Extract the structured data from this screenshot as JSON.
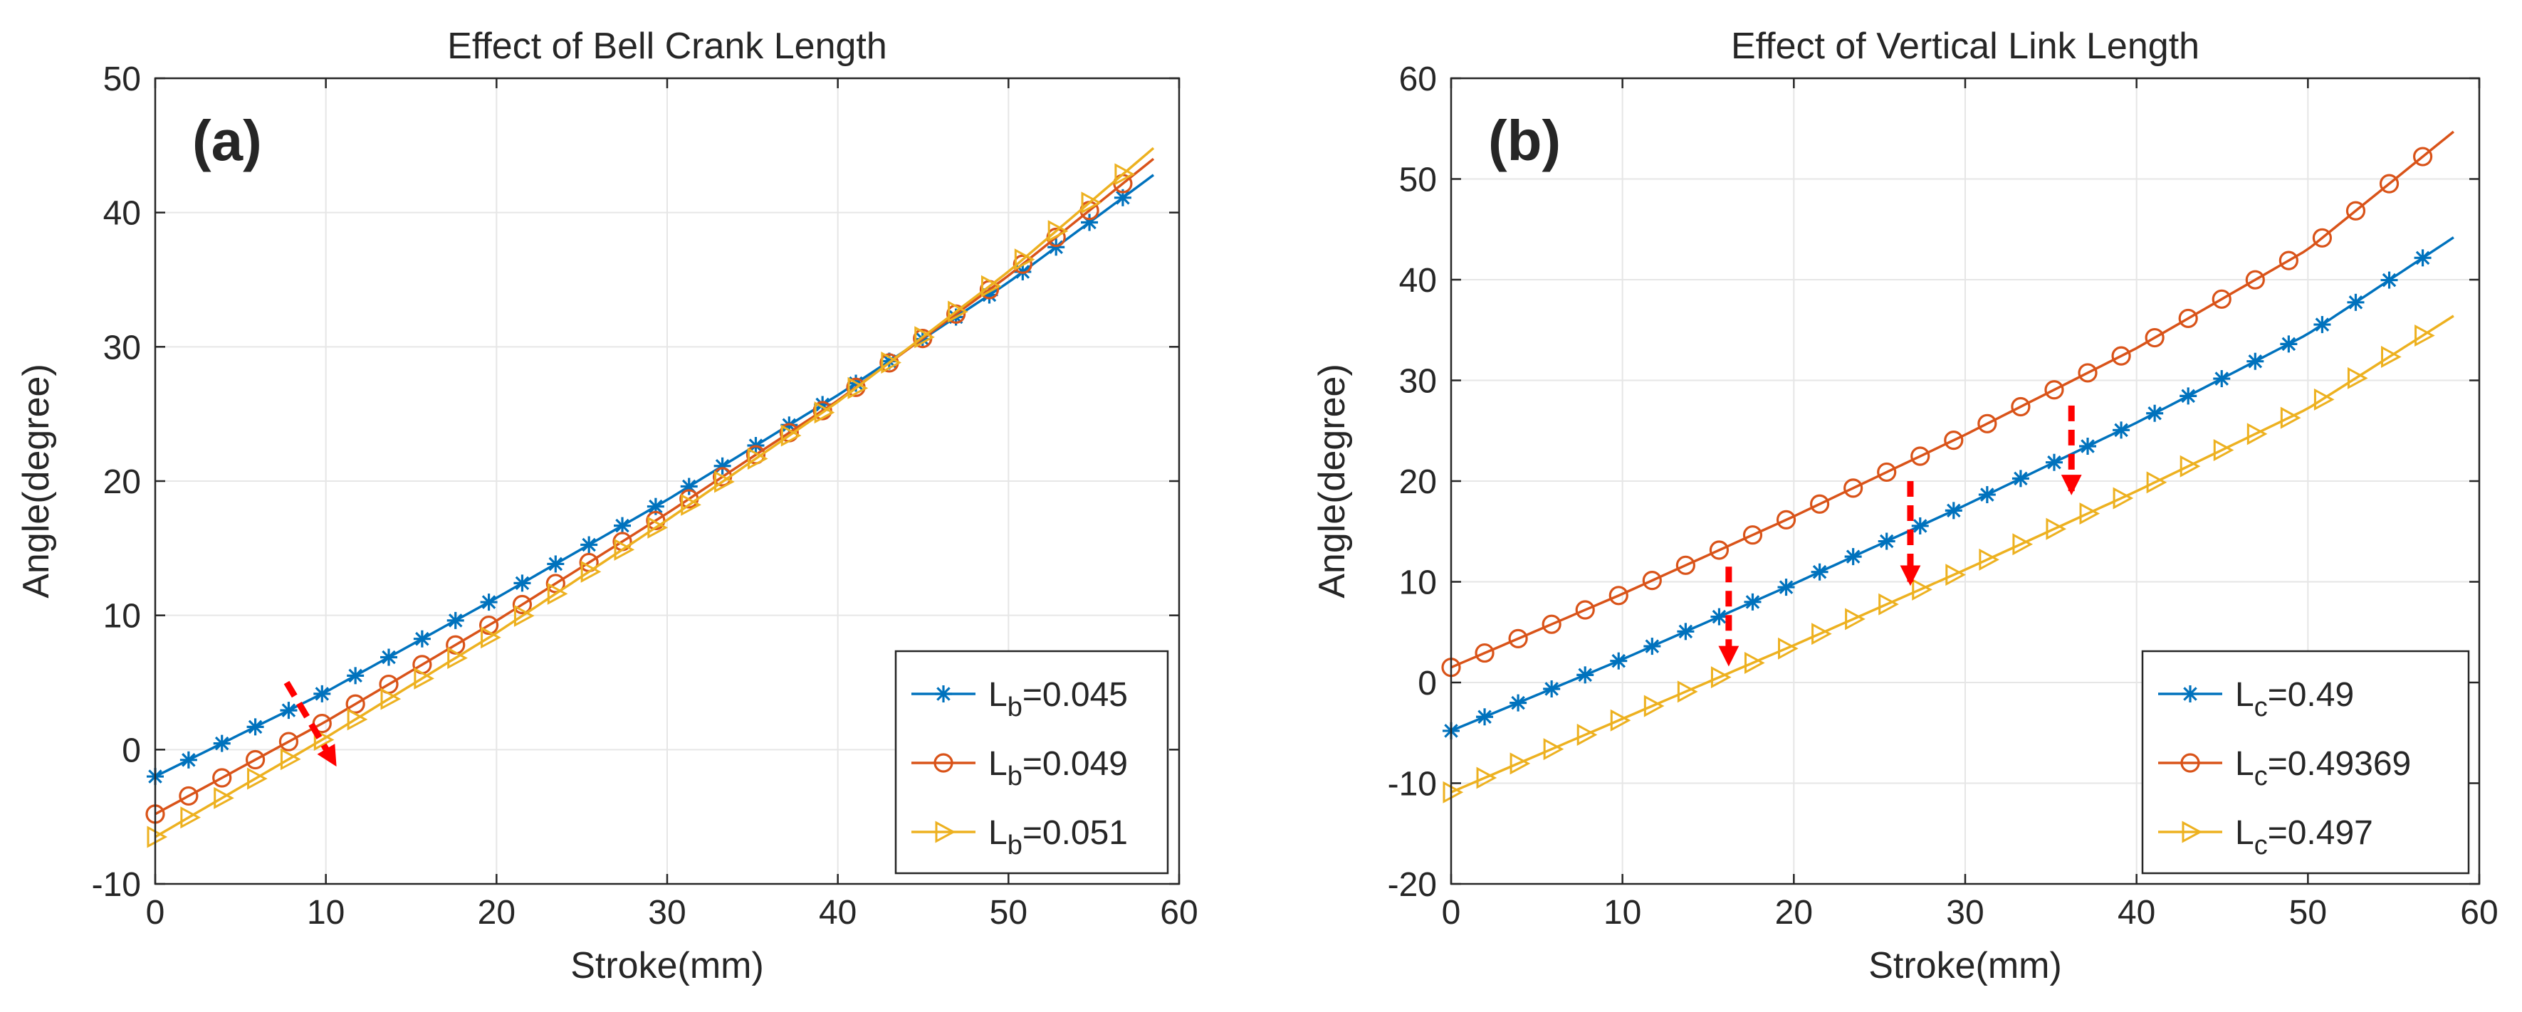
{
  "colors": {
    "series_1": "#0072BD",
    "series_2": "#D95319",
    "series_3": "#EDB120",
    "arrow": "#FF0000",
    "grid": "#E6E6E6",
    "axis": "#262626"
  },
  "chart_data": [
    {
      "type": "line",
      "panel_label": "(a)",
      "title": "Effect of Bell Crank Length",
      "xlabel": "Stroke(mm)",
      "ylabel": "Angle(degree)",
      "xlim": [
        0,
        60
      ],
      "ylim": [
        -10,
        50
      ],
      "xticks": [
        0,
        10,
        20,
        30,
        40,
        50,
        60
      ],
      "yticks": [
        -10,
        0,
        10,
        20,
        30,
        40,
        50
      ],
      "grid": true,
      "legend_position": "bottom-right",
      "x_range": [
        0,
        58.5
      ],
      "marker_x_range": [
        0,
        56.7
      ],
      "marker_count": 30,
      "series": [
        {
          "legend_main": "L",
          "legend_sub": "b",
          "legend_value": "=0.045",
          "marker": "asterisk",
          "color_key": "series_1",
          "x": [
            0,
            10,
            20,
            30,
            40,
            50,
            58.5
          ],
          "y": [
            -2,
            4.3,
            11.3,
            18.6,
            26.4,
            34.8,
            42.8
          ]
        },
        {
          "legend_main": "L",
          "legend_sub": "b",
          "legend_value": "=0.049",
          "marker": "circle",
          "color_key": "series_2",
          "x": [
            0,
            10,
            20,
            30,
            40,
            50,
            58.5
          ],
          "y": [
            -4.8,
            2.1,
            9.6,
            17.6,
            26,
            35.3,
            44
          ]
        },
        {
          "legend_main": "L",
          "legend_sub": "b",
          "legend_value": "=0.051",
          "marker": "triangle-right",
          "color_key": "series_3",
          "x": [
            0,
            10,
            20,
            30,
            40,
            50,
            58.5
          ],
          "y": [
            -6.5,
            0.9,
            8.7,
            17.1,
            25.9,
            35.6,
            44.8
          ]
        }
      ],
      "arrows": [
        {
          "from": [
            7.7,
            5
          ],
          "to": [
            10.5,
            -1
          ],
          "style": "dashed"
        }
      ]
    },
    {
      "type": "line",
      "panel_label": "(b)",
      "title": "Effect of Vertical Link Length",
      "xlabel": "Stroke(mm)",
      "ylabel": "Angle(degree)",
      "xlim": [
        0,
        60
      ],
      "ylim": [
        -20,
        60
      ],
      "xticks": [
        0,
        10,
        20,
        30,
        40,
        50,
        60
      ],
      "yticks": [
        -20,
        -10,
        0,
        10,
        20,
        30,
        40,
        50,
        60
      ],
      "grid": true,
      "legend_position": "bottom-right",
      "x_range": [
        0,
        58.5
      ],
      "marker_x_range": [
        0,
        56.7
      ],
      "marker_count": 30,
      "series": [
        {
          "legend_main": "L",
          "legend_sub": "c",
          "legend_value": "=0.49",
          "marker": "asterisk",
          "color_key": "series_1",
          "x": [
            0,
            10,
            20,
            30,
            40,
            50,
            58.5
          ],
          "y": [
            -4.8,
            2.3,
            9.8,
            17.6,
            25.8,
            34.6,
            44.2
          ]
        },
        {
          "legend_main": "L",
          "legend_sub": "c",
          "legend_value": "=0.49369",
          "marker": "circle",
          "color_key": "series_2",
          "x": [
            0,
            10,
            20,
            30,
            40,
            50,
            58.5
          ],
          "y": [
            1.5,
            8.8,
            16.5,
            24.6,
            33.2,
            43,
            54.7
          ]
        },
        {
          "legend_main": "L",
          "legend_sub": "c",
          "legend_value": "=0.497",
          "marker": "triangle-right",
          "color_key": "series_3",
          "x": [
            0,
            10,
            20,
            30,
            40,
            50,
            58.5
          ],
          "y": [
            -10.9,
            -3.6,
            3.7,
            11.2,
            19,
            27.2,
            36.4
          ]
        }
      ],
      "arrows": [
        {
          "from": [
            16.2,
            11.5
          ],
          "to": [
            16.2,
            2
          ],
          "style": "dashed"
        },
        {
          "from": [
            26.8,
            20
          ],
          "to": [
            26.8,
            10
          ],
          "style": "dashed"
        },
        {
          "from": [
            36.2,
            27.5
          ],
          "to": [
            36.2,
            19
          ],
          "style": "dashed"
        }
      ]
    }
  ]
}
